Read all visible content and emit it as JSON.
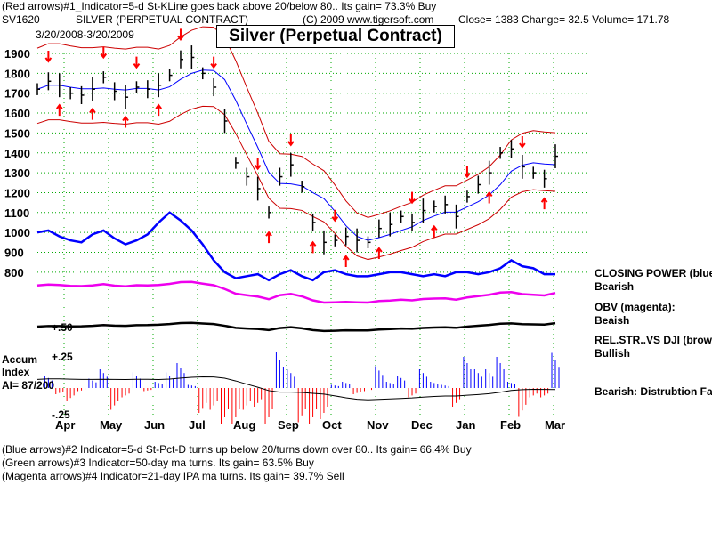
{
  "header": {
    "line1": "(Red arrows)#1_Indicator=5-d St-KLine goes back above 20/below 80.. Its gain= 73.3% Buy",
    "symbol": "SV1620",
    "name": "SILVER (PERPETUAL CONTRACT)",
    "copyright": "(C) 2009 www.tigersoft.com",
    "quote": "Close=  1383  Change= 32.5 Volume= 171.78",
    "range": "3/20/2008-3/20/2009"
  },
  "footer": [
    "(Blue arrows)#2 Indicator=5-d St-Pct-D turns up below 20/turns down over 80.. Its gain= 66.4% Buy",
    "(Green arrows)#3 Indicator=50-day ma turns. Its gain= 63.5% Buy",
    "(Magenta arrows)#4 Indicator=21-day IPA ma turns. Its gain= 39.7% Sell"
  ],
  "side_labels": {
    "cp_title": "CLOSING POWER (blue",
    "cp_state": "Bearish",
    "obv_title": "OBV (magenta):",
    "obv_state": "Beaish",
    "rs_title": "REL.STR..VS DJI (brow",
    "rs_state": "Bullish",
    "ai_state": "Bearish: Distrubtion Fal",
    "rs_level": "+.50",
    "accum1": "Accum",
    "accum2": "Index",
    "accum3": "AI= 87/200",
    "ai_top": "+.25",
    "ai_bot": "-.25"
  },
  "chart_data": {
    "type": "line",
    "title": "Silver (Perpetual Contract)",
    "ylim": [
      850,
      1950
    ],
    "yticks": [
      "1900",
      "1800",
      "1700",
      "1600",
      "1500",
      "1400",
      "1300",
      "1200",
      "1100",
      "1000",
      "900",
      "800"
    ],
    "months": [
      "Apr",
      "May",
      "Jun",
      "Jul",
      "Aug",
      "Sep",
      "Oct",
      "Nov",
      "Dec",
      "Jan",
      "Feb",
      "Mar"
    ],
    "close_weekly": [
      1720,
      1760,
      1740,
      1700,
      1690,
      1720,
      1780,
      1710,
      1680,
      1730,
      1720,
      1740,
      1790,
      1870,
      1880,
      1800,
      1730,
      1560,
      1350,
      1280,
      1220,
      1100,
      1280,
      1340,
      1230,
      1050,
      950,
      960,
      980,
      960,
      950,
      1020,
      1040,
      1080,
      1050,
      1110,
      1130,
      1140,
      1080,
      1180,
      1240,
      1300,
      1400,
      1420,
      1330,
      1300,
      1270,
      1383
    ],
    "closing_power": [
      1000,
      1010,
      980,
      960,
      950,
      990,
      1010,
      970,
      940,
      960,
      990,
      1050,
      1100,
      1060,
      1010,
      940,
      860,
      800,
      770,
      780,
      790,
      760,
      790,
      810,
      780,
      760,
      800,
      810,
      790,
      780,
      780,
      790,
      800,
      800,
      790,
      780,
      790,
      780,
      800,
      800,
      790,
      800,
      820,
      860,
      830,
      820,
      790,
      790
    ],
    "red_arrows": [
      {
        "w": 1,
        "dir": "down"
      },
      {
        "w": 6,
        "dir": "down"
      },
      {
        "w": 9,
        "dir": "down"
      },
      {
        "w": 13,
        "dir": "down"
      },
      {
        "w": 16,
        "dir": "down"
      },
      {
        "w": 20,
        "dir": "down"
      },
      {
        "w": 23,
        "dir": "down"
      },
      {
        "w": 27,
        "dir": "down"
      },
      {
        "w": 34,
        "dir": "down"
      },
      {
        "w": 39,
        "dir": "down"
      },
      {
        "w": 44,
        "dir": "down"
      },
      {
        "w": 2,
        "dir": "up"
      },
      {
        "w": 5,
        "dir": "up"
      },
      {
        "w": 8,
        "dir": "up"
      },
      {
        "w": 11,
        "dir": "up"
      },
      {
        "w": 21,
        "dir": "up"
      },
      {
        "w": 25,
        "dir": "up"
      },
      {
        "w": 28,
        "dir": "up"
      },
      {
        "w": 31,
        "dir": "up"
      },
      {
        "w": 36,
        "dir": "up"
      },
      {
        "w": 41,
        "dir": "up"
      },
      {
        "w": 46,
        "dir": "up"
      }
    ]
  }
}
